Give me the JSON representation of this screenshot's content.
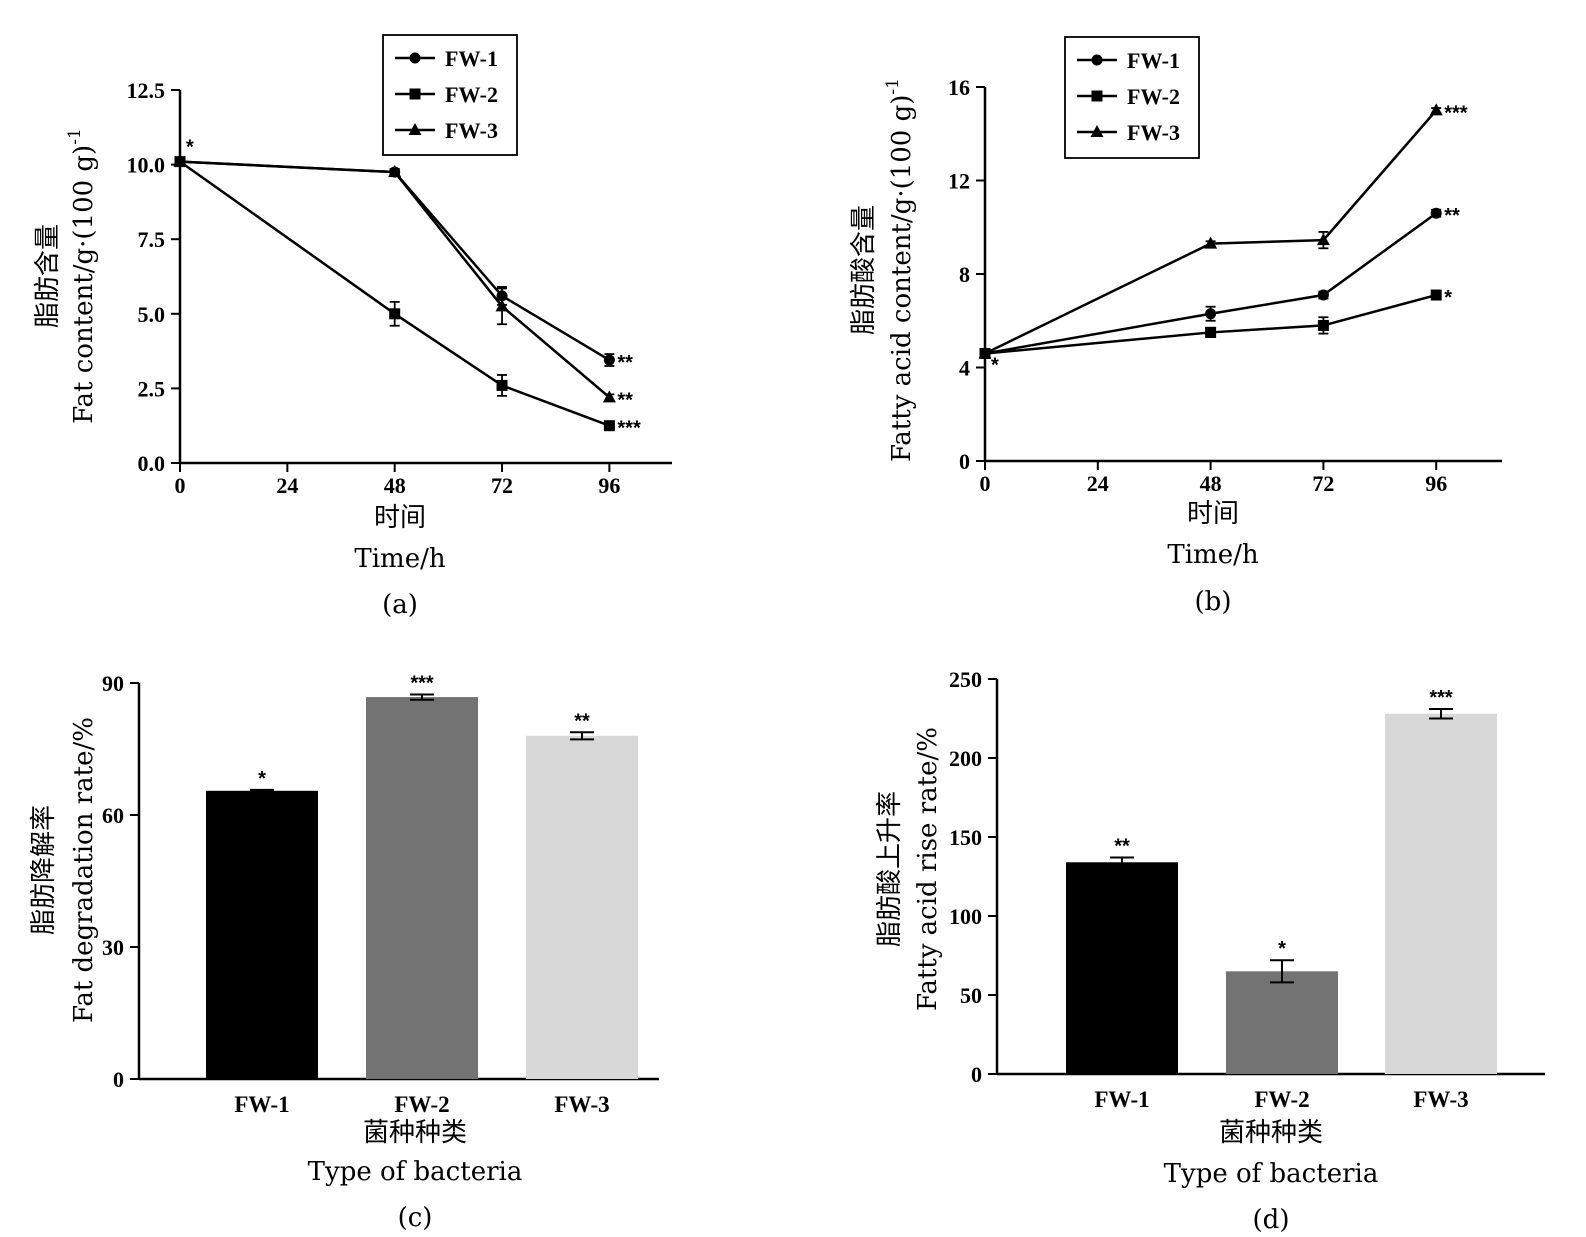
{
  "chart_data": [
    {
      "type": "line",
      "panel": "(a)",
      "xlabel_cn": "时间",
      "xlabel": "Time/h",
      "ylabel_cn": "脂肪含量",
      "ylabel": "Fat content/g·(100 g)",
      "ylabel_sup": "-1",
      "x": [
        0,
        48,
        72,
        96
      ],
      "xticks": [
        "0",
        "24",
        "48",
        "72",
        "96"
      ],
      "xlim": [
        0,
        110
      ],
      "ylim": [
        0,
        12.5
      ],
      "yticks": [
        "0.0",
        "2.5",
        "5.0",
        "7.5",
        "10.0",
        "12.5"
      ],
      "legend_position": "top-center",
      "series": [
        {
          "name": "FW-1",
          "marker": "circle",
          "values": [
            10.1,
            9.75,
            5.6,
            3.45
          ],
          "errors": [
            0.1,
            0.1,
            0.3,
            0.2
          ],
          "end_sig": "**"
        },
        {
          "name": "FW-2",
          "marker": "square",
          "values": [
            10.1,
            5.0,
            2.6,
            1.25
          ],
          "errors": [
            0.1,
            0.4,
            0.35,
            0.1
          ],
          "end_sig": "***"
        },
        {
          "name": "FW-3",
          "marker": "triangle",
          "values": [
            10.1,
            9.75,
            5.25,
            2.2
          ],
          "errors": [
            0.1,
            0.1,
            0.6,
            0.1
          ],
          "end_sig": "**"
        }
      ],
      "start_sig": "*"
    },
    {
      "type": "line",
      "panel": "(b)",
      "xlabel_cn": "时间",
      "xlabel": "Time/h",
      "ylabel_cn": "脂肪酸含量",
      "ylabel": "Fatty acid content/g·(100 g)",
      "ylabel_sup": "-1",
      "x": [
        0,
        48,
        72,
        96
      ],
      "xticks": [
        "0",
        "24",
        "48",
        "72",
        "96"
      ],
      "xlim": [
        0,
        110
      ],
      "ylim": [
        0,
        16
      ],
      "yticks": [
        "0",
        "4",
        "8",
        "12",
        "16"
      ],
      "legend_position": "top-left",
      "series": [
        {
          "name": "FW-1",
          "marker": "circle",
          "values": [
            4.6,
            6.3,
            7.1,
            10.6
          ],
          "errors": [
            0.1,
            0.3,
            0.15,
            0.15
          ],
          "end_sig": "**"
        },
        {
          "name": "FW-2",
          "marker": "square",
          "values": [
            4.6,
            5.5,
            5.8,
            7.1
          ],
          "errors": [
            0.1,
            0.2,
            0.35,
            0.15
          ],
          "end_sig": "*"
        },
        {
          "name": "FW-3",
          "marker": "triangle",
          "values": [
            4.6,
            9.3,
            9.45,
            15.0
          ],
          "errors": [
            0.1,
            0.1,
            0.35,
            0.1
          ],
          "end_sig": "***"
        }
      ],
      "start_sig": "*"
    },
    {
      "type": "bar",
      "panel": "(c)",
      "xlabel_cn": "菌种种类",
      "xlabel": "Type of bacteria",
      "ylabel_cn": "脂肪降解率",
      "ylabel": "Fat degradation rate/%",
      "categories": [
        "FW-1",
        "FW-2",
        "FW-3"
      ],
      "values": [
        65.5,
        86.8,
        78.0
      ],
      "errors": [
        0.2,
        0.6,
        0.8
      ],
      "sig": [
        "*",
        "***",
        "**"
      ],
      "colors": [
        "#000000",
        "#737373",
        "#d8d8d8"
      ],
      "ylim": [
        0,
        90
      ],
      "yticks": [
        "0",
        "30",
        "60",
        "90"
      ]
    },
    {
      "type": "bar",
      "panel": "(d)",
      "xlabel_cn": "菌种种类",
      "xlabel": "Type of bacteria",
      "ylabel_cn": "脂肪酸上升率",
      "ylabel": "Fatty acid rise rate/%",
      "categories": [
        "FW-1",
        "FW-2",
        "FW-3"
      ],
      "values": [
        134,
        65,
        228
      ],
      "errors": [
        3,
        7,
        3
      ],
      "sig": [
        "**",
        "*",
        "***"
      ],
      "colors": [
        "#000000",
        "#737373",
        "#d8d8d8"
      ],
      "ylim": [
        0,
        250
      ],
      "yticks": [
        "0",
        "50",
        "100",
        "150",
        "200",
        "250"
      ]
    }
  ]
}
